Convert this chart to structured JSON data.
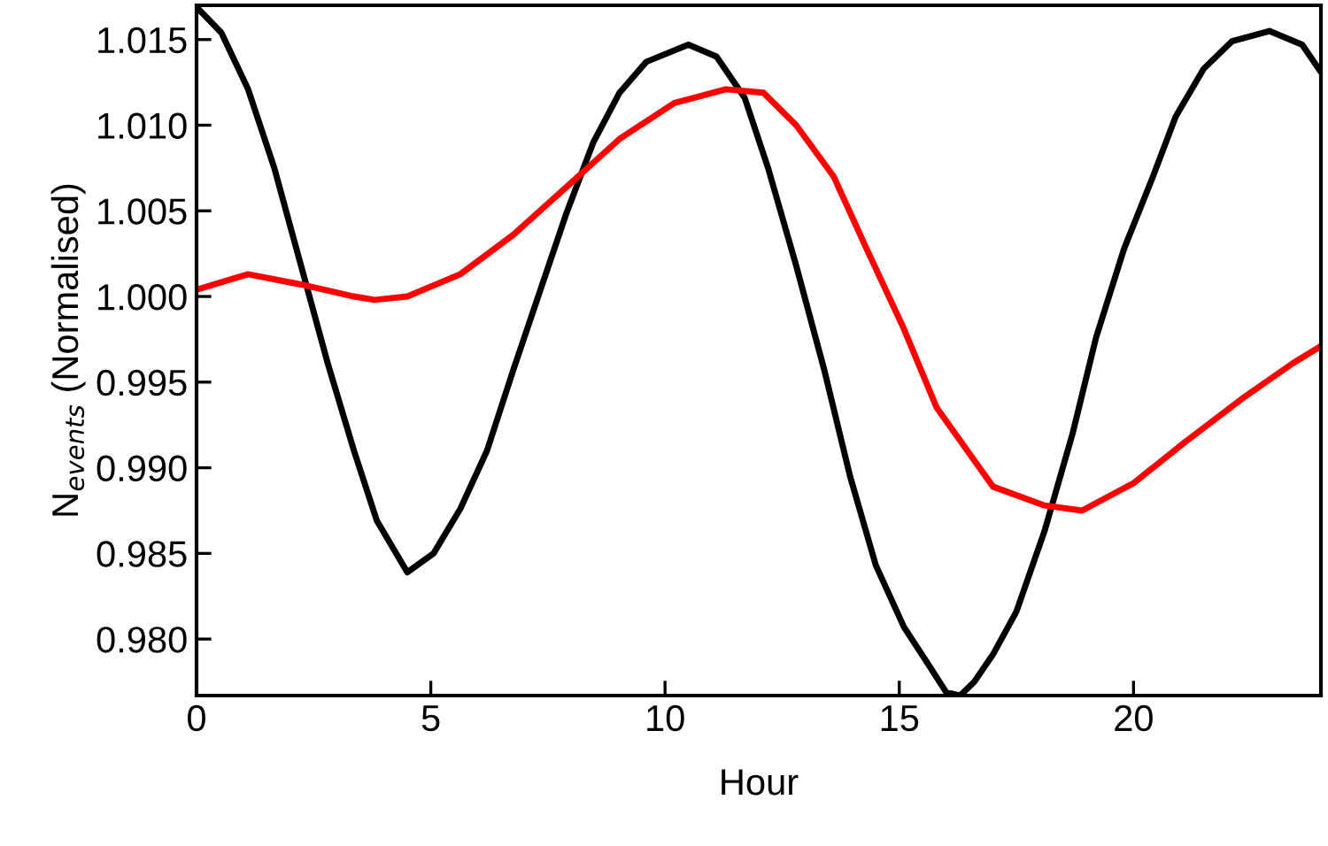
{
  "chart_data": {
    "type": "line",
    "xlabel": "Hour",
    "ylabel": "N$_{events}$ (Normalised)",
    "xlim": [
      0,
      24
    ],
    "xticks": [
      0,
      5,
      10,
      15,
      20
    ],
    "ylim": [
      0.9767,
      1.017
    ],
    "yticks": [
      {
        "value": 0.98,
        "label": "0.980"
      },
      0.985,
      {
        "value": 0.99,
        "label": "0.990"
      },
      0.995,
      {
        "value": 1.0,
        "label": "1.000"
      },
      1.005,
      {
        "value": 1.01,
        "label": "1.010"
      },
      1.015
    ],
    "grid": false,
    "legend": false,
    "marker": "none",
    "line_style": "solid",
    "series": [
      {
        "color": "#000000",
        "x": [
          0,
          0.53,
          1.1,
          1.66,
          2.23,
          2.8,
          3.36,
          3.85,
          4.5,
          5.06,
          5.63,
          6.2,
          6.76,
          7.33,
          7.9,
          8.47,
          9.03,
          9.6,
          10.5,
          11.1,
          11.7,
          12.2,
          12.8,
          13.4,
          13.95,
          14.5,
          15.1,
          15.6,
          16.0,
          16.3,
          16.6,
          17.0,
          17.5,
          18.1,
          18.7,
          19.2,
          19.8,
          20.4,
          20.9,
          21.5,
          22.1,
          22.9,
          23.6,
          24
        ],
        "values": [
          1.0169,
          1.0154,
          1.0121,
          1.0075,
          1.0018,
          0.9961,
          0.991,
          0.9869,
          0.9839,
          0.985,
          0.9876,
          0.991,
          0.9957,
          1.0003,
          1.0049,
          1.009,
          1.0119,
          1.0137,
          1.0147,
          1.014,
          1.0116,
          1.0075,
          1.0018,
          0.9957,
          0.9895,
          0.9843,
          0.9807,
          0.9786,
          0.9769,
          0.9767,
          0.9775,
          0.9791,
          0.9816,
          0.9863,
          0.992,
          0.9976,
          1.0028,
          1.0069,
          1.0105,
          1.0133,
          1.0149,
          1.0155,
          1.0147,
          1.0131
        ]
      },
      {
        "color": "#ff0000",
        "x": [
          0,
          1.1,
          2.23,
          3.36,
          3.8,
          4.5,
          5.63,
          6.76,
          7.9,
          9.03,
          10.2,
          11.3,
          12.1,
          12.8,
          13.6,
          14.3,
          15.1,
          15.8,
          17.0,
          18.1,
          18.9,
          20.0,
          21.1,
          22.3,
          23.4,
          24
        ],
        "values": [
          1.0004,
          1.0013,
          1.0007,
          1.0,
          0.9998,
          1.0,
          1.0013,
          1.0036,
          1.0064,
          1.0092,
          1.0113,
          1.0121,
          1.0119,
          1.01,
          1.007,
          1.0028,
          0.9981,
          0.9935,
          0.9889,
          0.9878,
          0.9875,
          0.9891,
          0.9915,
          0.994,
          0.9961,
          0.9971
        ]
      }
    ]
  }
}
